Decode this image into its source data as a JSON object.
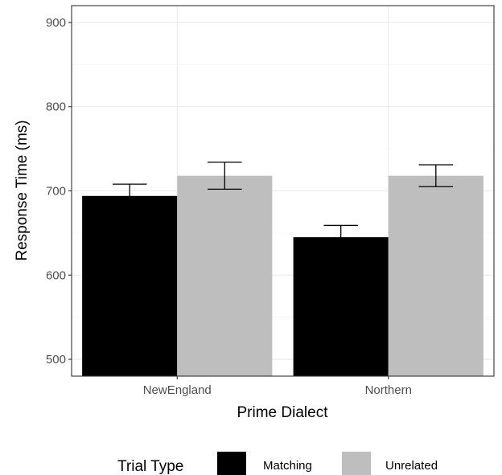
{
  "chart_data": {
    "type": "bar",
    "title": "",
    "xlabel": "Prime Dialect",
    "ylabel": "Response Time (ms)",
    "categories": [
      "NewEngland",
      "Northern"
    ],
    "series": [
      {
        "name": "Matching",
        "color": "#000000",
        "values": [
          694,
          645
        ],
        "error_low": [
          680,
          631
        ],
        "error_high": [
          708,
          659
        ]
      },
      {
        "name": "Unrelated",
        "color": "#bebebe",
        "values": [
          718,
          718
        ],
        "error_low": [
          702,
          705
        ],
        "error_high": [
          734,
          731
        ]
      }
    ],
    "ylim": [
      480,
      920
    ],
    "yticks": [
      500,
      600,
      700,
      800,
      900
    ],
    "grid": true,
    "legend": {
      "title": "Trial Type",
      "position": "bottom"
    }
  }
}
